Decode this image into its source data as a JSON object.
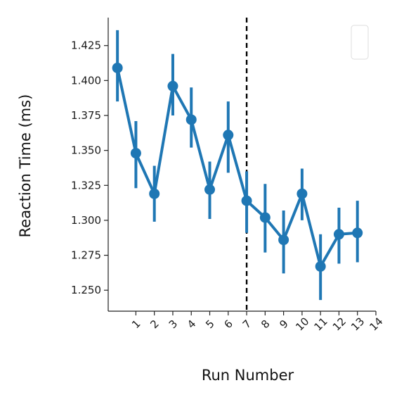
{
  "chart_data": {
    "type": "line",
    "xlabel": "Run Number",
    "ylabel": "Reaction Time (ms)",
    "x_ticks": [
      1,
      2,
      3,
      4,
      5,
      6,
      7,
      8,
      9,
      10,
      11,
      12,
      13,
      14
    ],
    "y_ticks": [
      "1.250",
      "1.275",
      "1.300",
      "1.325",
      "1.350",
      "1.375",
      "1.400",
      "1.425"
    ],
    "xlim": [
      -0.5,
      14
    ],
    "ylim": [
      1.235,
      1.445
    ],
    "vertical_line": {
      "x": 7,
      "style": "dashed",
      "color": "#000000"
    },
    "legend": {
      "location": "top-right",
      "entries": []
    },
    "series": [
      {
        "color": "#1f77b4",
        "x": [
          0,
          1,
          2,
          3,
          4,
          5,
          6,
          7,
          8,
          9,
          10,
          11,
          12,
          13
        ],
        "values": [
          1.409,
          1.348,
          1.319,
          1.396,
          1.372,
          1.322,
          1.361,
          1.314,
          1.302,
          1.286,
          1.319,
          1.267,
          1.29,
          1.291
        ],
        "error_low": [
          1.385,
          1.323,
          1.299,
          1.375,
          1.352,
          1.301,
          1.334,
          1.291,
          1.277,
          1.262,
          1.3,
          1.243,
          1.269,
          1.27
        ],
        "error_high": [
          1.436,
          1.371,
          1.339,
          1.419,
          1.395,
          1.342,
          1.385,
          1.335,
          1.326,
          1.307,
          1.337,
          1.29,
          1.309,
          1.314
        ]
      }
    ]
  }
}
